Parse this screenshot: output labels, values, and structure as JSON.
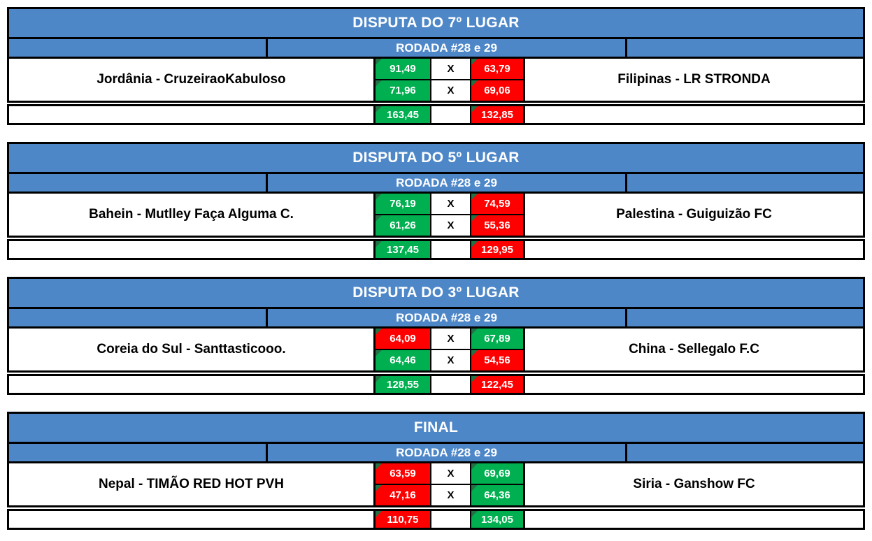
{
  "page": {
    "background": "#FFFFFF",
    "description": "Fantasy league playoff finals bracket sheet"
  },
  "colors": {
    "header_blue": "#4E87C8",
    "win_green": "#00B050",
    "lose_red": "#FF0000",
    "corner_indicator_green": "#217346",
    "border": "#000000",
    "header_text": "#FFFFFF",
    "score_text": "#FFFFFF",
    "team_text": "#000000"
  },
  "icons": {
    "corner_indicator": "excel-cell-corner-triangle"
  },
  "labels": {
    "vs": "X",
    "round": "RODADA #28 e 29"
  },
  "brackets": [
    {
      "title": "DISPUTA DO 7º LUGAR",
      "round": "RODADA #28 e 29",
      "home": {
        "name": "Jordânia - CruzeiraoKabuloso",
        "scores": [
          "91,49",
          "71,96"
        ],
        "results": [
          "win",
          "win"
        ],
        "total": "163,45",
        "total_result": "win"
      },
      "away": {
        "name": "Filipinas - LR STRONDA",
        "scores": [
          "63,79",
          "69,06"
        ],
        "results": [
          "lose",
          "lose"
        ],
        "total": "132,85",
        "total_result": "lose"
      }
    },
    {
      "title": "DISPUTA DO 5º LUGAR",
      "round": "RODADA #28 e 29",
      "home": {
        "name": "Bahein - Mutlley Faça Alguma C.",
        "scores": [
          "76,19",
          "61,26"
        ],
        "results": [
          "win",
          "win"
        ],
        "total": "137,45",
        "total_result": "win"
      },
      "away": {
        "name": "Palestina - Guiguizão FC",
        "scores": [
          "74,59",
          "55,36"
        ],
        "results": [
          "lose",
          "lose"
        ],
        "total": "129,95",
        "total_result": "lose"
      }
    },
    {
      "title": "DISPUTA DO 3º LUGAR",
      "round": "RODADA #28 e 29",
      "home": {
        "name": "Coreia do Sul - Santtasticooo.",
        "scores": [
          "64,09",
          "64,46"
        ],
        "results": [
          "lose",
          "win"
        ],
        "total": "128,55",
        "total_result": "win"
      },
      "away": {
        "name": "China - Sellegalo F.C",
        "scores": [
          "67,89",
          "54,56"
        ],
        "results": [
          "win",
          "lose"
        ],
        "total": "122,45",
        "total_result": "lose"
      }
    },
    {
      "title": "FINAL",
      "round": "RODADA #28 e 29",
      "home": {
        "name": "Nepal - TIMÃO RED HOT PVH",
        "scores": [
          "63,59",
          "47,16"
        ],
        "results": [
          "lose",
          "lose"
        ],
        "total": "110,75",
        "total_result": "lose"
      },
      "away": {
        "name": "Siria - Ganshow FC",
        "scores": [
          "69,69",
          "64,36"
        ],
        "results": [
          "win",
          "win"
        ],
        "total": "134,05",
        "total_result": "win"
      }
    }
  ]
}
